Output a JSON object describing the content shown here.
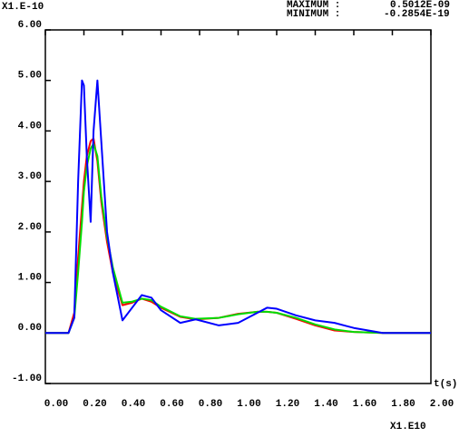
{
  "chart_data": {
    "type": "line",
    "y_scale_label": "X1.E-10",
    "maximum_label": "MAXIMUM :",
    "maximum_value": "0.5012E-09",
    "minimum_label": "MINIMUM :",
    "minimum_value": "-0.2854E-19",
    "x_label": "t(s)",
    "x_scale_label": "X1.E10",
    "x": [
      0,
      0.12,
      0.15,
      0.17,
      0.19,
      0.2,
      0.215,
      0.235,
      0.25,
      0.27,
      0.29,
      0.32,
      0.35,
      0.4,
      0.45,
      0.5,
      0.55,
      0.6,
      0.7,
      0.78,
      0.9,
      1.0,
      1.1,
      1.15,
      1.2,
      1.3,
      1.4,
      1.5,
      1.6,
      1.75,
      2.0
    ],
    "series": [
      {
        "color": "#ff0000",
        "values": [
          0,
          0,
          0.4,
          1.5,
          2.5,
          3.0,
          3.5,
          3.8,
          3.85,
          3.4,
          2.6,
          1.8,
          1.2,
          0.55,
          0.6,
          0.68,
          0.62,
          0.5,
          0.32,
          0.27,
          0.3,
          0.38,
          0.42,
          0.42,
          0.4,
          0.28,
          0.15,
          0.05,
          0.02,
          0,
          0
        ]
      },
      {
        "color": "#00dd00",
        "values": [
          0,
          0,
          0.3,
          1.2,
          2.2,
          2.8,
          3.3,
          3.65,
          3.75,
          3.5,
          2.7,
          1.9,
          1.3,
          0.6,
          0.62,
          0.68,
          0.65,
          0.52,
          0.33,
          0.28,
          0.3,
          0.37,
          0.42,
          0.42,
          0.4,
          0.3,
          0.17,
          0.07,
          0.02,
          0,
          0
        ]
      },
      {
        "color": "#0000ff",
        "values": [
          0,
          0,
          0.3,
          3.0,
          5.0,
          4.9,
          3.5,
          2.2,
          4.0,
          5.0,
          3.8,
          2.0,
          1.2,
          0.25,
          0.5,
          0.75,
          0.7,
          0.45,
          0.2,
          0.27,
          0.15,
          0.2,
          0.4,
          0.5,
          0.48,
          0.35,
          0.25,
          0.2,
          0.1,
          0,
          0
        ]
      }
    ],
    "xlim": [
      0,
      2
    ],
    "ylim": [
      -1,
      6
    ],
    "xticks": [
      {
        "value": 0,
        "label": "0.00"
      },
      {
        "value": 0.2,
        "label": "0.20"
      },
      {
        "value": 0.4,
        "label": "0.40"
      },
      {
        "value": 0.6,
        "label": "0.60"
      },
      {
        "value": 0.8,
        "label": "0.80"
      },
      {
        "value": 1.0,
        "label": "1.00"
      },
      {
        "value": 1.2,
        "label": "1.20"
      },
      {
        "value": 1.4,
        "label": "1.40"
      },
      {
        "value": 1.6,
        "label": "1.60"
      },
      {
        "value": 1.8,
        "label": "1.80"
      },
      {
        "value": 2.0,
        "label": "2.00"
      }
    ],
    "yticks": [
      {
        "value": -1,
        "label": "-1.00"
      },
      {
        "value": 0,
        "label": "0.00"
      },
      {
        "value": 1,
        "label": "1.00"
      },
      {
        "value": 2,
        "label": "2.00"
      },
      {
        "value": 3,
        "label": "3.00"
      },
      {
        "value": 4,
        "label": "4.00"
      },
      {
        "value": 5,
        "label": "5.00"
      },
      {
        "value": 6,
        "label": "6.00"
      }
    ]
  }
}
